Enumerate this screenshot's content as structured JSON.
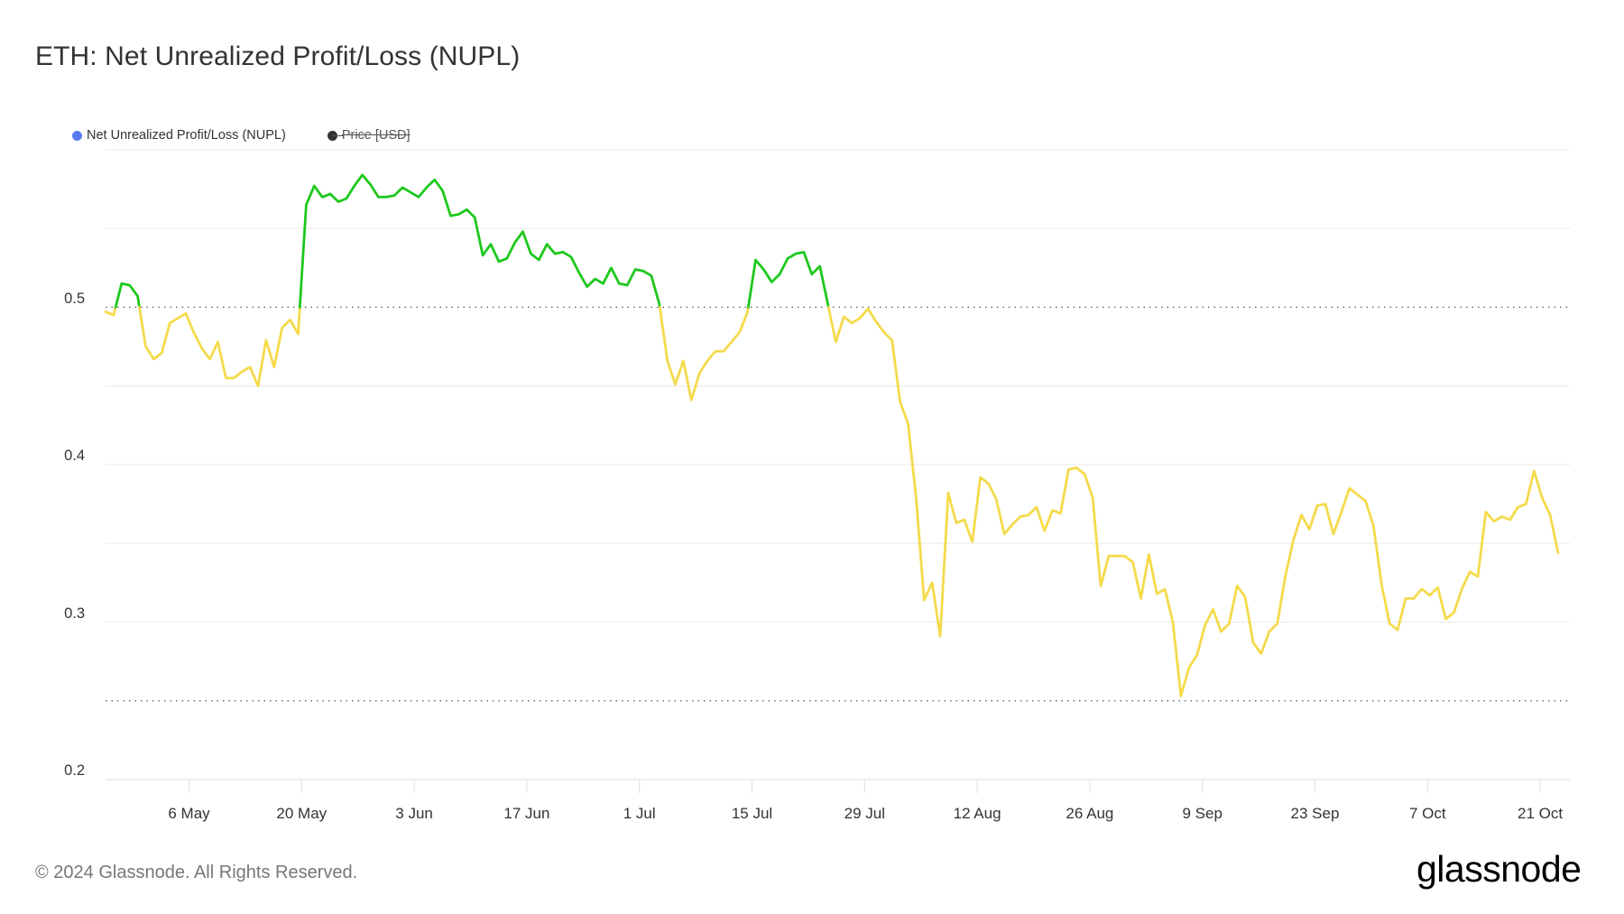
{
  "header": {
    "title": "ETH: Net Unrealized Profit/Loss (NUPL)"
  },
  "legend": {
    "items": [
      {
        "label": "Net Unrealized Profit/Loss (NUPL)",
        "color": "#5b7cf0",
        "enabled": true
      },
      {
        "label": "Price [USD]",
        "color": "#333333",
        "enabled": false
      }
    ]
  },
  "footer": {
    "copyright": "© 2024 Glassnode. All Rights Reserved.",
    "logo": "glassnode"
  },
  "colors": {
    "above_threshold": "#1ec81e",
    "below_threshold": "#f5da4b",
    "grid": "#eeeeee",
    "reference_line": "#555555"
  },
  "chart_data": {
    "type": "line",
    "title": "ETH: Net Unrealized Profit/Loss (NUPL)",
    "xlabel": "",
    "ylabel": "",
    "ylim": [
      0.2,
      0.6
    ],
    "yticks": [
      "0.2",
      "0.3",
      "0.4",
      "0.5"
    ],
    "xticks": [
      "6 May",
      "20 May",
      "3 Jun",
      "17 Jun",
      "1 Jul",
      "15 Jul",
      "29 Jul",
      "12 Aug",
      "26 Aug",
      "9 Sep",
      "23 Sep",
      "7 Oct",
      "21 Oct"
    ],
    "reference_lines": [
      0.5,
      0.25
    ],
    "grid": true,
    "legend_position": "top-left",
    "color_rule": "green when NUPL >= 0.5, yellow when below 0.5",
    "x_start": "24 Apr 2024",
    "x_end": "23 Oct 2024",
    "interval": "daily",
    "series": [
      {
        "name": "Net Unrealized Profit/Loss (NUPL)",
        "values": [
          0.497,
          0.495,
          0.515,
          0.514,
          0.507,
          0.475,
          0.467,
          0.471,
          0.49,
          0.493,
          0.496,
          0.484,
          0.474,
          0.467,
          0.478,
          0.455,
          0.455,
          0.459,
          0.462,
          0.45,
          0.479,
          0.462,
          0.487,
          0.492,
          0.483,
          0.565,
          0.577,
          0.57,
          0.572,
          0.567,
          0.569,
          0.577,
          0.584,
          0.578,
          0.57,
          0.57,
          0.571,
          0.576,
          0.573,
          0.57,
          0.576,
          0.581,
          0.574,
          0.558,
          0.559,
          0.562,
          0.557,
          0.533,
          0.54,
          0.529,
          0.531,
          0.541,
          0.548,
          0.534,
          0.53,
          0.54,
          0.534,
          0.535,
          0.532,
          0.522,
          0.513,
          0.518,
          0.515,
          0.525,
          0.515,
          0.514,
          0.524,
          0.523,
          0.52,
          0.502,
          0.466,
          0.451,
          0.466,
          0.441,
          0.458,
          0.466,
          0.472,
          0.472,
          0.478,
          0.484,
          0.497,
          0.53,
          0.524,
          0.516,
          0.521,
          0.531,
          0.534,
          0.535,
          0.521,
          0.526,
          0.502,
          0.478,
          0.494,
          0.49,
          0.493,
          0.499,
          0.491,
          0.484,
          0.479,
          0.44,
          0.426,
          0.379,
          0.314,
          0.325,
          0.291,
          0.382,
          0.363,
          0.365,
          0.351,
          0.392,
          0.388,
          0.378,
          0.356,
          0.362,
          0.367,
          0.368,
          0.373,
          0.358,
          0.371,
          0.369,
          0.397,
          0.398,
          0.394,
          0.379,
          0.323,
          0.342,
          0.342,
          0.342,
          0.338,
          0.315,
          0.343,
          0.318,
          0.321,
          0.3,
          0.253,
          0.271,
          0.279,
          0.298,
          0.308,
          0.294,
          0.299,
          0.323,
          0.316,
          0.287,
          0.28,
          0.294,
          0.299,
          0.329,
          0.352,
          0.368,
          0.359,
          0.374,
          0.375,
          0.356,
          0.37,
          0.385,
          0.381,
          0.377,
          0.361,
          0.324,
          0.299,
          0.295,
          0.315,
          0.315,
          0.321,
          0.317,
          0.322,
          0.302,
          0.306,
          0.321,
          0.332,
          0.329,
          0.37,
          0.364,
          0.367,
          0.365,
          0.373,
          0.375,
          0.396,
          0.379,
          0.368,
          0.344
        ]
      }
    ]
  }
}
